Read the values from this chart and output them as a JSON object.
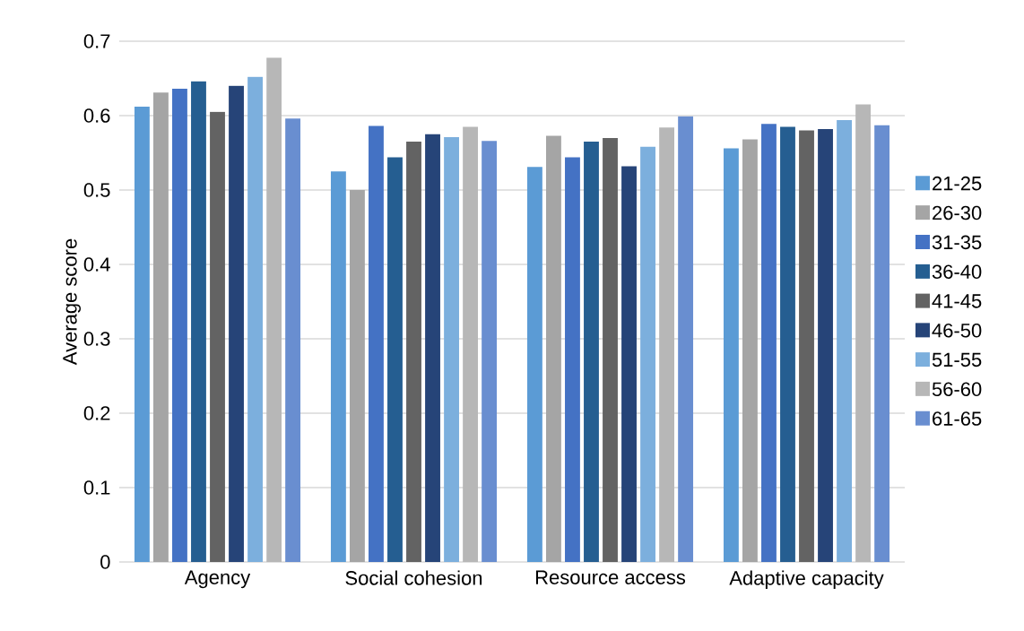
{
  "chart_data": {
    "type": "bar",
    "ylabel": "Average score",
    "categories": [
      "Agency",
      "Social cohesion",
      "Resource access",
      "Adaptive capacity"
    ],
    "series": [
      {
        "name": "21-25",
        "color": "#5b9bd5",
        "values": [
          0.612,
          0.525,
          0.531,
          0.556
        ]
      },
      {
        "name": "26-30",
        "color": "#a5a5a5",
        "values": [
          0.631,
          0.5,
          0.573,
          0.568
        ]
      },
      {
        "name": "31-35",
        "color": "#4472c4",
        "values": [
          0.636,
          0.586,
          0.544,
          0.589
        ]
      },
      {
        "name": "36-40",
        "color": "#255e91",
        "values": [
          0.646,
          0.544,
          0.565,
          0.585
        ]
      },
      {
        "name": "41-45",
        "color": "#636363",
        "values": [
          0.605,
          0.565,
          0.57,
          0.58
        ]
      },
      {
        "name": "46-50",
        "color": "#264478",
        "values": [
          0.64,
          0.575,
          0.532,
          0.582
        ]
      },
      {
        "name": "51-55",
        "color": "#7cafdd",
        "values": [
          0.652,
          0.571,
          0.558,
          0.594
        ]
      },
      {
        "name": "56-60",
        "color": "#b7b7b7",
        "values": [
          0.678,
          0.585,
          0.584,
          0.615
        ]
      },
      {
        "name": "61-65",
        "color": "#698ed0",
        "values": [
          0.596,
          0.566,
          0.599,
          0.587
        ]
      }
    ],
    "ylim": [
      0,
      0.7
    ],
    "yticks": [
      0,
      0.1,
      0.2,
      0.3,
      0.4,
      0.5,
      0.6,
      0.7
    ],
    "grid": "y",
    "legend": "right"
  }
}
